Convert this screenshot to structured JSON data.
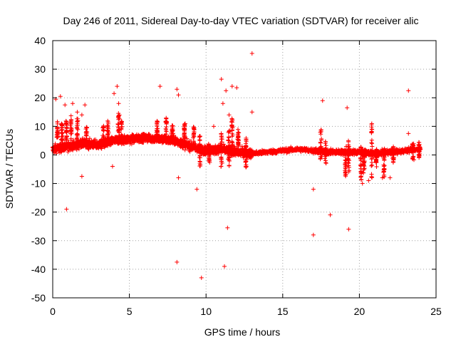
{
  "chart_data": {
    "type": "scatter",
    "title": "Day 246 of 2011, Sidereal Day-to-day VTEC variation (SDTVAR) for receiver alic",
    "xlabel": "GPS time / hours",
    "ylabel": "SDTVAR / TECUs",
    "xlim": [
      0,
      25
    ],
    "ylim": [
      -50,
      40
    ],
    "xticks": [
      0,
      5,
      10,
      15,
      20,
      25
    ],
    "yticks": [
      -50,
      -40,
      -30,
      -20,
      -10,
      0,
      10,
      20,
      30,
      40
    ],
    "grid": true,
    "marker": "+",
    "color": "#ff0000",
    "series": [
      {
        "name": "SDTVAR",
        "baseline": [
          [
            0.0,
            2
          ],
          [
            1.0,
            3
          ],
          [
            2.0,
            4
          ],
          [
            3.0,
            3.5
          ],
          [
            4.0,
            5
          ],
          [
            5.0,
            5.5
          ],
          [
            6.0,
            6
          ],
          [
            7.0,
            5.5
          ],
          [
            8.0,
            5
          ],
          [
            9.0,
            3
          ],
          [
            10.0,
            1.5
          ],
          [
            11.0,
            2
          ],
          [
            12.0,
            1
          ],
          [
            13.0,
            0.5
          ],
          [
            14.0,
            1
          ],
          [
            15.0,
            1.5
          ],
          [
            16.0,
            2
          ],
          [
            17.0,
            1.5
          ],
          [
            18.0,
            1
          ],
          [
            19.0,
            1
          ],
          [
            20.0,
            1
          ],
          [
            21.0,
            0.5
          ],
          [
            22.0,
            1
          ],
          [
            23.0,
            1.5
          ],
          [
            24.0,
            2
          ]
        ],
        "outliers": [
          [
            0.2,
            19.5
          ],
          [
            0.5,
            20.5
          ],
          [
            0.8,
            17.5
          ],
          [
            1.3,
            18
          ],
          [
            1.6,
            15
          ],
          [
            2.1,
            17.5
          ],
          [
            1.9,
            14
          ],
          [
            4.0,
            21.5
          ],
          [
            4.2,
            24
          ],
          [
            4.3,
            18
          ],
          [
            3.9,
            -4
          ],
          [
            7.0,
            24
          ],
          [
            8.1,
            23
          ],
          [
            8.2,
            21
          ],
          [
            8.1,
            -37.5
          ],
          [
            8.2,
            -8
          ],
          [
            9.4,
            -12
          ],
          [
            9.7,
            -43
          ],
          [
            11.0,
            26.5
          ],
          [
            11.1,
            18
          ],
          [
            11.3,
            22.5
          ],
          [
            11.2,
            -39
          ],
          [
            11.4,
            -25.5
          ],
          [
            11.7,
            24
          ],
          [
            12.0,
            23.5
          ],
          [
            13.0,
            35.5
          ],
          [
            13.0,
            15
          ],
          [
            17.0,
            -12
          ],
          [
            17.0,
            -28
          ],
          [
            17.6,
            19
          ],
          [
            18.1,
            -21
          ],
          [
            19.2,
            16.5
          ],
          [
            19.3,
            -26
          ],
          [
            23.2,
            22.5
          ],
          [
            23.2,
            7.5
          ],
          [
            0.9,
            -19
          ],
          [
            1.9,
            -7.5
          ],
          [
            10.5,
            10
          ],
          [
            11.5,
            14
          ],
          [
            20.2,
            -10
          ],
          [
            20.6,
            -9
          ],
          [
            21.5,
            -8
          ],
          [
            22.0,
            -8
          ]
        ],
        "spikes": [
          [
            0.3,
            6,
            12
          ],
          [
            0.6,
            5,
            11
          ],
          [
            0.9,
            5,
            12
          ],
          [
            1.2,
            4,
            14
          ],
          [
            1.6,
            3,
            13
          ],
          [
            2.2,
            3,
            10
          ],
          [
            3.3,
            4,
            11
          ],
          [
            3.6,
            3,
            12
          ],
          [
            4.3,
            4,
            15
          ],
          [
            4.5,
            3,
            12
          ],
          [
            6.8,
            5,
            12
          ],
          [
            7.4,
            4,
            13
          ],
          [
            7.8,
            4,
            11
          ],
          [
            8.6,
            5,
            11
          ],
          [
            9.2,
            3,
            10
          ],
          [
            9.6,
            -4,
            7
          ],
          [
            10.2,
            -3,
            5
          ],
          [
            11.0,
            -5,
            8
          ],
          [
            11.5,
            -4,
            9
          ],
          [
            11.7,
            3,
            13
          ],
          [
            12.1,
            3,
            9
          ],
          [
            12.6,
            -5,
            6
          ],
          [
            17.5,
            -2,
            9
          ],
          [
            17.8,
            -3,
            5
          ],
          [
            19.1,
            -8,
            4
          ],
          [
            19.3,
            -6,
            5
          ],
          [
            20.1,
            -9,
            3
          ],
          [
            20.3,
            -7,
            2
          ],
          [
            20.8,
            -8,
            12
          ],
          [
            21.1,
            -6,
            2
          ],
          [
            21.6,
            -8,
            2
          ],
          [
            22.2,
            -3,
            3
          ],
          [
            23.5,
            -2,
            4
          ],
          [
            23.9,
            -1,
            5
          ]
        ],
        "range": [
          0,
          24
        ]
      }
    ]
  }
}
